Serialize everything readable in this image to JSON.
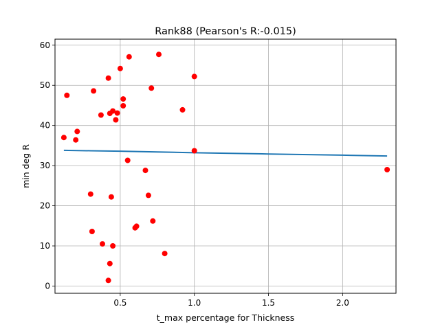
{
  "chart_data": {
    "type": "scatter",
    "title": "Rank88 (Pearson's R:-0.015)",
    "xlabel": "t_max percentage for Thickness",
    "ylabel": "min deg R",
    "xlim": [
      0.06,
      2.36
    ],
    "ylim": [
      -1.8,
      61.5
    ],
    "xticks": [
      0.5,
      1.0,
      1.5,
      2.0
    ],
    "xtick_labels": [
      "0.5",
      "1.0",
      "1.5",
      "2.0"
    ],
    "yticks": [
      0,
      10,
      20,
      30,
      40,
      50,
      60
    ],
    "ytick_labels": [
      "0",
      "10",
      "20",
      "30",
      "40",
      "50",
      "60"
    ],
    "grid": true,
    "points": [
      [
        0.12,
        37.0
      ],
      [
        0.14,
        47.5
      ],
      [
        0.2,
        36.4
      ],
      [
        0.21,
        38.5
      ],
      [
        0.3,
        22.9
      ],
      [
        0.31,
        13.6
      ],
      [
        0.32,
        48.6
      ],
      [
        0.37,
        42.6
      ],
      [
        0.38,
        10.5
      ],
      [
        0.42,
        51.8
      ],
      [
        0.42,
        1.4
      ],
      [
        0.43,
        43.0
      ],
      [
        0.43,
        5.6
      ],
      [
        0.44,
        22.2
      ],
      [
        0.45,
        43.6
      ],
      [
        0.45,
        10.0
      ],
      [
        0.47,
        41.4
      ],
      [
        0.48,
        43.1
      ],
      [
        0.5,
        54.2
      ],
      [
        0.52,
        46.6
      ],
      [
        0.52,
        44.9
      ],
      [
        0.55,
        31.3
      ],
      [
        0.56,
        57.1
      ],
      [
        0.6,
        14.5
      ],
      [
        0.61,
        14.9
      ],
      [
        0.67,
        28.8
      ],
      [
        0.69,
        22.6
      ],
      [
        0.71,
        49.3
      ],
      [
        0.72,
        16.2
      ],
      [
        0.76,
        57.7
      ],
      [
        0.8,
        8.1
      ],
      [
        0.92,
        43.9
      ],
      [
        1.0,
        52.2
      ],
      [
        1.0,
        33.7
      ],
      [
        2.3,
        29.0
      ]
    ],
    "point_color": "#ff0000",
    "fit_line": {
      "x": [
        0.12,
        0.3,
        0.5,
        0.75,
        1.0,
        1.5,
        2.0,
        2.3
      ],
      "y": [
        33.8,
        33.7,
        33.6,
        33.4,
        33.2,
        32.9,
        32.6,
        32.4
      ],
      "color": "#1f77b4"
    }
  }
}
